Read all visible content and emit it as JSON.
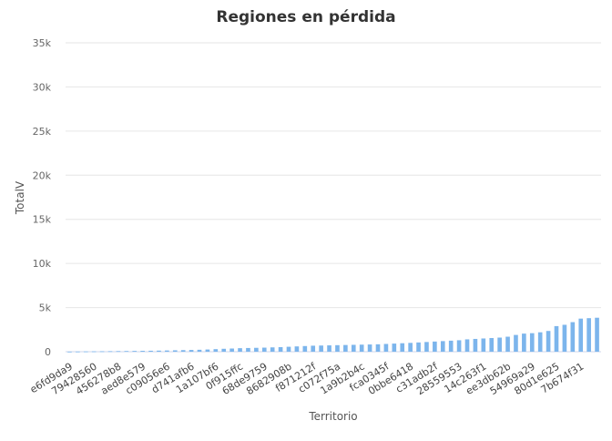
{
  "chart_data": {
    "type": "bar",
    "title": "Regiones en pérdida",
    "xlabel": "Territorio",
    "ylabel": "TotalV",
    "ylim": [
      0,
      35000
    ],
    "yticks": [
      "0",
      "5k",
      "10k",
      "15k",
      "20k",
      "25k",
      "30k",
      "35k"
    ],
    "ytick_values": [
      0,
      5000,
      10000,
      15000,
      20000,
      25000,
      30000,
      35000
    ],
    "grid": true,
    "legend": "none",
    "bar_color": "#7cb5ec",
    "tick_labels": [
      "e6fd9da9",
      "79428560",
      "456278b8",
      "aed8e579",
      "c09056e6",
      "d741afb6",
      "1a107bf6",
      "0f915ffc",
      "68de9759",
      "8682908b",
      "f871212f",
      "c072f75a",
      "1a9b2b4c",
      "fca0345f",
      "0bbe6418",
      "c31adb2f",
      "28559553",
      "14c263f1",
      "ee3db62b",
      "54969a29",
      "80d1e625",
      "7b674f31"
    ],
    "categories": [
      "e6fd9da9",
      "",
      "",
      "79428560",
      "",
      "",
      "456278b8",
      "",
      "",
      "aed8e579",
      "",
      "",
      "c09056e6",
      "",
      "",
      "d741afb6",
      "",
      "",
      "1a107bf6",
      "",
      "",
      "0f915ffc",
      "",
      "",
      "68de9759",
      "",
      "",
      "8682908b",
      "",
      "",
      "f871212f",
      "",
      "",
      "c072f75a",
      "",
      "",
      "1a9b2b4c",
      "",
      "",
      "fca0345f",
      "",
      "",
      "0bbe6418",
      "",
      "",
      "c31adb2f",
      "",
      "",
      "28559553",
      "",
      "",
      "14c263f1",
      "",
      "",
      "ee3db62b",
      "",
      "",
      "54969a29",
      "",
      "",
      "80d1e625",
      "",
      "",
      "7b674f31",
      "",
      ""
    ],
    "values": [
      10,
      20,
      30,
      40,
      50,
      60,
      70,
      80,
      90,
      100,
      110,
      125,
      140,
      160,
      180,
      200,
      220,
      250,
      290,
      330,
      360,
      400,
      420,
      440,
      460,
      490,
      520,
      560,
      600,
      640,
      680,
      700,
      720,
      740,
      760,
      780,
      800,
      820,
      840,
      880,
      920,
      960,
      1000,
      1050,
      1100,
      1150,
      1200,
      1250,
      1300,
      1400,
      1450,
      1500,
      1550,
      1600,
      1700,
      1900,
      2050,
      2100,
      2200,
      2350,
      2900,
      3050,
      3350,
      3750,
      3800,
      3850
    ]
  }
}
